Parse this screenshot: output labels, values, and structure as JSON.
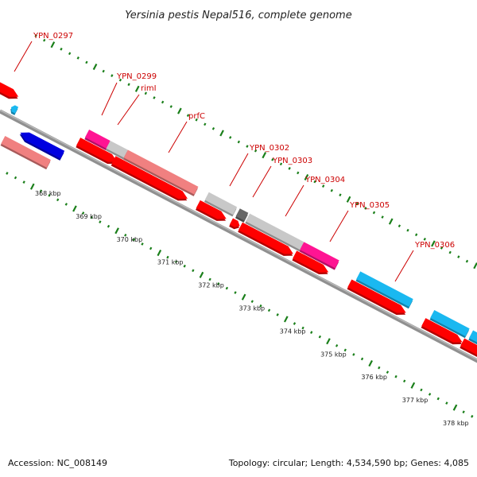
{
  "title": "Yersinia pestis Nepal516, complete genome",
  "footer": {
    "accession": "Accession: NC_008149",
    "summary": "Topology: circular; Length: 4,534,590 bp; Genes: 4,085"
  },
  "colors": {
    "backbone": "#909090",
    "tick": "#1a7f1a",
    "label": "#cc0000",
    "red": "#ff0000",
    "salmon": "#f08080",
    "gray": "#c8c8c8",
    "darkgray": "#666666",
    "magenta": "#ff1493",
    "cyan": "#1ab8f0",
    "blue": "#0000e0"
  },
  "scale_labels": [
    "368 kbp",
    "369 kbp",
    "370 kbp",
    "371 kbp",
    "372 kbp",
    "373 kbp",
    "374 kbp",
    "375 kbp",
    "376 kbp",
    "377 kbp",
    "378 kbp"
  ],
  "gene_labels": [
    "YPN_0297",
    "YPN_0299",
    "rimI",
    "prfC",
    "YPN_0302",
    "YPN_0303",
    "YPN_0304",
    "YPN_0305",
    "YPN_0306"
  ],
  "features": [
    {
      "name": "feature-partial-red",
      "color": "red"
    },
    {
      "name": "feature-partial-cyan",
      "color": "cyan"
    },
    {
      "name": "feature-blue",
      "color": "blue"
    },
    {
      "name": "feature-salmon-a",
      "color": "salmon"
    },
    {
      "name": "feature-magenta-a",
      "color": "magenta"
    },
    {
      "name": "feature-gray-a",
      "color": "gray"
    },
    {
      "name": "feature-red-a",
      "color": "red"
    },
    {
      "name": "feature-salmon-prfc",
      "color": "salmon"
    },
    {
      "name": "feature-red-prfc",
      "color": "red"
    },
    {
      "name": "feature-gray-b",
      "color": "gray"
    },
    {
      "name": "feature-red-b",
      "color": "red"
    },
    {
      "name": "feature-darkgray",
      "color": "darkgray"
    },
    {
      "name": "feature-red-small",
      "color": "red"
    },
    {
      "name": "feature-gray-c",
      "color": "gray"
    },
    {
      "name": "feature-red-c",
      "color": "red"
    },
    {
      "name": "feature-magenta-b",
      "color": "magenta"
    },
    {
      "name": "feature-red-d",
      "color": "red"
    },
    {
      "name": "feature-cyan-a",
      "color": "cyan"
    },
    {
      "name": "feature-red-e",
      "color": "red"
    },
    {
      "name": "feature-cyan-b",
      "color": "cyan"
    },
    {
      "name": "feature-red-f",
      "color": "red"
    },
    {
      "name": "feature-cyan-c",
      "color": "cyan"
    },
    {
      "name": "feature-red-g",
      "color": "red"
    }
  ]
}
